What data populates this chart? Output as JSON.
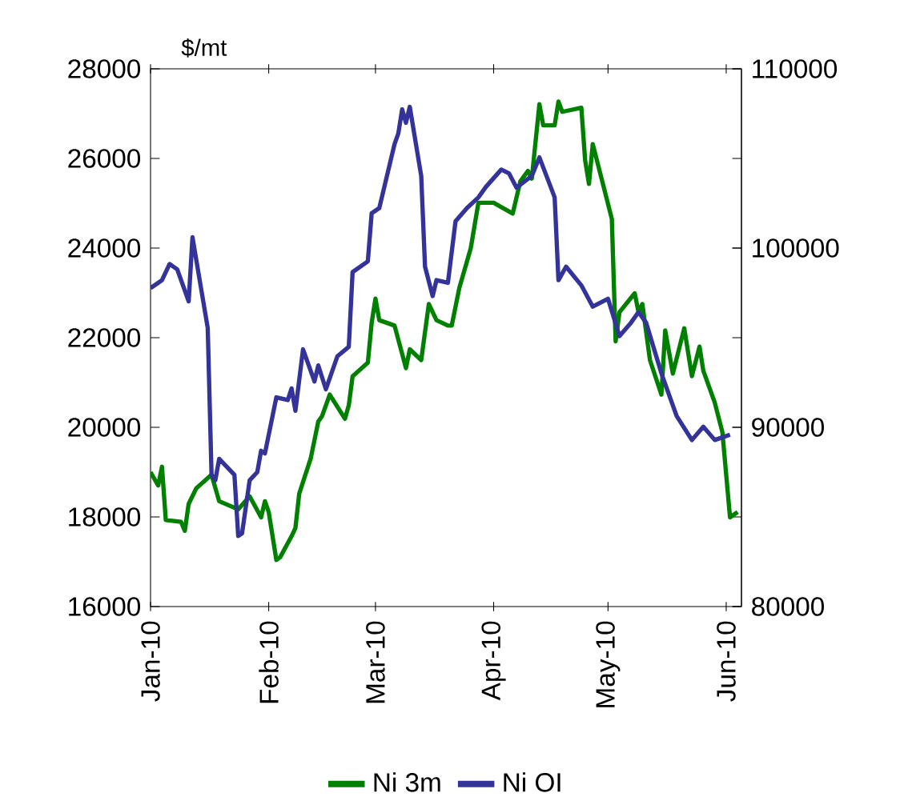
{
  "chart_data": {
    "type": "line",
    "ylabel": "$/mt",
    "xlim": [
      "2010-01-01",
      "2010-06-05"
    ],
    "xticks": [
      {
        "value": "2010-01-01",
        "label": "Jan-10"
      },
      {
        "value": "2010-02-01",
        "label": "Feb-10"
      },
      {
        "value": "2010-03-01",
        "label": "Mar-10"
      },
      {
        "value": "2010-04-01",
        "label": "Apr-10"
      },
      {
        "value": "2010-05-01",
        "label": "May-10"
      },
      {
        "value": "2010-06-01",
        "label": "Jun-10"
      }
    ],
    "ylim": [
      16000,
      28000
    ],
    "yticks": [
      16000,
      18000,
      20000,
      22000,
      24000,
      26000,
      28000
    ],
    "y2lim": [
      80000,
      110000
    ],
    "y2ticks": [
      80000,
      90000,
      100000,
      110000
    ],
    "legend": "bottom",
    "grid": false,
    "marker": "none",
    "line_style": "solid",
    "series": [
      {
        "name": "Ni 3m",
        "color": "#008000",
        "axis": "y",
        "x": [
          "2010-01-01",
          "2010-01-03",
          "2010-01-04",
          "2010-01-05",
          "2010-01-09",
          "2010-01-10",
          "2010-01-11",
          "2010-01-13",
          "2010-01-17",
          "2010-01-19",
          "2010-01-24",
          "2010-01-27",
          "2010-01-30",
          "2010-01-31",
          "2010-02-01",
          "2010-02-03",
          "2010-02-04",
          "2010-02-07",
          "2010-02-08",
          "2010-02-09",
          "2010-02-12",
          "2010-02-14",
          "2010-02-15",
          "2010-02-17",
          "2010-02-21",
          "2010-02-22",
          "2010-02-23",
          "2010-02-27",
          "2010-02-28",
          "2010-03-01",
          "2010-03-02",
          "2010-03-06",
          "2010-03-09",
          "2010-03-10",
          "2010-03-13",
          "2010-03-15",
          "2010-03-17",
          "2010-03-20",
          "2010-03-21",
          "2010-03-23",
          "2010-03-25",
          "2010-03-26",
          "2010-03-28",
          "2010-04-01",
          "2010-04-06",
          "2010-04-08",
          "2010-04-10",
          "2010-04-11",
          "2010-04-13",
          "2010-04-14",
          "2010-04-17",
          "2010-04-18",
          "2010-04-19",
          "2010-04-24",
          "2010-04-25",
          "2010-04-26",
          "2010-04-27",
          "2010-05-02",
          "2010-05-03",
          "2010-05-04",
          "2010-05-08",
          "2010-05-09",
          "2010-05-10",
          "2010-05-12",
          "2010-05-15",
          "2010-05-16",
          "2010-05-18",
          "2010-05-21",
          "2010-05-23",
          "2010-05-25",
          "2010-05-26",
          "2010-05-29",
          "2010-05-31",
          "2010-06-02",
          "2010-06-04"
        ],
        "values": [
          19000,
          18700,
          19120,
          17930,
          17890,
          17690,
          18290,
          18640,
          18940,
          18350,
          18170,
          18460,
          17990,
          18350,
          18110,
          17040,
          17100,
          17570,
          17750,
          18520,
          19300,
          20130,
          20250,
          20730,
          20190,
          20490,
          21140,
          21440,
          22330,
          22870,
          22390,
          22270,
          21320,
          21740,
          21500,
          22750,
          22390,
          22270,
          22270,
          23110,
          23700,
          24000,
          25010,
          25010,
          24770,
          25490,
          25720,
          25550,
          27210,
          26740,
          26740,
          27270,
          27040,
          27130,
          25960,
          25430,
          26320,
          24650,
          21920,
          22570,
          22990,
          22570,
          22750,
          21500,
          20730,
          22160,
          21200,
          22210,
          21140,
          21800,
          21260,
          20550,
          19890,
          17990,
          18110
        ]
      },
      {
        "name": "Ni OI",
        "color": "#333399",
        "axis": "y2",
        "x": [
          "2010-01-01",
          "2010-01-03",
          "2010-01-04",
          "2010-01-06",
          "2010-01-08",
          "2010-01-11",
          "2010-01-12",
          "2010-01-16",
          "2010-01-17",
          "2010-01-18",
          "2010-01-19",
          "2010-01-23",
          "2010-01-24",
          "2010-01-25",
          "2010-01-27",
          "2010-01-29",
          "2010-01-30",
          "2010-01-31",
          "2010-02-03",
          "2010-02-06",
          "2010-02-07",
          "2010-02-08",
          "2010-02-10",
          "2010-02-13",
          "2010-02-14",
          "2010-02-16",
          "2010-02-19",
          "2010-02-22",
          "2010-02-23",
          "2010-02-27",
          "2010-02-28",
          "2010-03-02",
          "2010-03-06",
          "2010-03-07",
          "2010-03-08",
          "2010-03-09",
          "2010-03-10",
          "2010-03-13",
          "2010-03-14",
          "2010-03-16",
          "2010-03-17",
          "2010-03-20",
          "2010-03-22",
          "2010-03-25",
          "2010-03-28",
          "2010-03-30",
          "2010-04-03",
          "2010-04-05",
          "2010-04-07",
          "2010-04-11",
          "2010-04-13",
          "2010-04-17",
          "2010-04-18",
          "2010-04-20",
          "2010-04-24",
          "2010-04-27",
          "2010-05-01",
          "2010-05-04",
          "2010-05-07",
          "2010-05-09",
          "2010-05-11",
          "2010-05-15",
          "2010-05-19",
          "2010-05-23",
          "2010-05-26",
          "2010-05-29",
          "2010-06-02"
        ],
        "values": [
          97770,
          98060,
          98210,
          99110,
          98810,
          97030,
          100600,
          95540,
          87350,
          87050,
          88240,
          87350,
          83930,
          84080,
          87050,
          87500,
          88690,
          88540,
          91670,
          91520,
          92170,
          90920,
          94350,
          92560,
          93450,
          92120,
          93960,
          94490,
          98660,
          99260,
          101940,
          102230,
          105800,
          106400,
          107740,
          106990,
          107880,
          104020,
          98960,
          97320,
          98210,
          98060,
          101490,
          102230,
          102830,
          103420,
          104380,
          104170,
          103370,
          104020,
          105060,
          102830,
          98210,
          98960,
          97920,
          96730,
          97170,
          95090,
          95830,
          96430,
          95830,
          93010,
          90630,
          89290,
          90030,
          89290,
          89590
        ]
      }
    ]
  }
}
